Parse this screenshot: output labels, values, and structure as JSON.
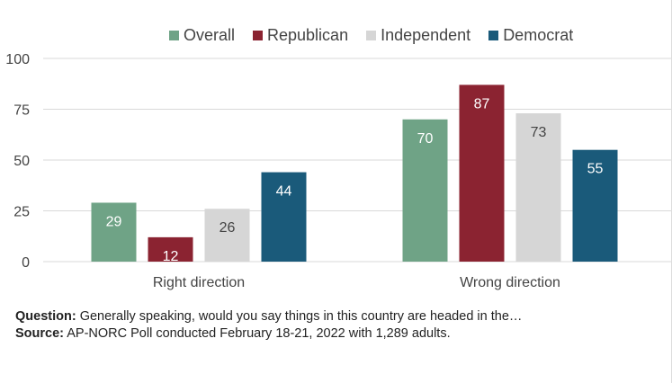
{
  "chart_data": {
    "type": "bar",
    "categories": [
      "Right direction",
      "Wrong direction"
    ],
    "series": [
      {
        "name": "Overall",
        "color": "#6fa386",
        "values": [
          29,
          70
        ]
      },
      {
        "name": "Republican",
        "color": "#8b2331",
        "values": [
          12,
          87
        ]
      },
      {
        "name": "Independent",
        "color": "#d6d6d6",
        "values": [
          26,
          73
        ]
      },
      {
        "name": "Democrat",
        "color": "#1a5a7a",
        "values": [
          44,
          55
        ]
      }
    ],
    "yticks": [
      0,
      25,
      50,
      75,
      100
    ],
    "ylim": [
      0,
      100
    ],
    "grid": true,
    "legend": "top"
  },
  "caption": {
    "question_label": "Question:",
    "question_text": "Generally speaking, would you say things in this country are headed in the…",
    "source_label": "Source:",
    "source_text": "AP-NORC Poll conducted February 18-21, 2022 with 1,289 adults."
  }
}
